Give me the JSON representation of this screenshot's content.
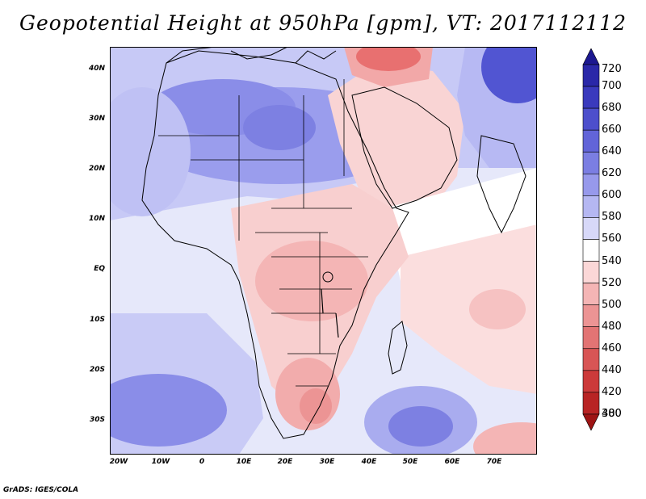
{
  "title": "Geopotential Height at 950hPa [gpm], VT: 2017112112",
  "credit": "GrADS: IGES/COLA",
  "lat_labels": [
    "40N",
    "30N",
    "20N",
    "10N",
    "EQ",
    "10S",
    "20S",
    "30S"
  ],
  "lon_labels": [
    "20W",
    "10W",
    "0",
    "10E",
    "20E",
    "30E",
    "40E",
    "50E",
    "60E",
    "70E"
  ],
  "colorbar": {
    "levels": [
      "720",
      "700",
      "680",
      "660",
      "640",
      "620",
      "600",
      "580",
      "560",
      "540",
      "520",
      "500",
      "480",
      "460",
      "440",
      "420",
      "400",
      "380"
    ],
    "colors": [
      "#1c1890",
      "#2a28a8",
      "#3a3abd",
      "#4d4fcc",
      "#6264d8",
      "#7b7ee2",
      "#9799eb",
      "#b5b7f2",
      "#d7d8f8",
      "#ffffff",
      "#fbd7d7",
      "#f4b5b5",
      "#ec9494",
      "#e27474",
      "#d85555",
      "#cc3a3a",
      "#b82424",
      "#9e1414"
    ]
  },
  "map_colors": {
    "background": "#eef0fb",
    "strong_low": "#e85c5c",
    "low": "#f4b0b0",
    "weak_low": "#fbd9d9",
    "neutral": "#ffffff",
    "weak_high": "#d6d8f8",
    "high": "#a9acef",
    "strong_high": "#7d80e2",
    "very_high": "#5155d2",
    "outline": "#000000"
  }
}
